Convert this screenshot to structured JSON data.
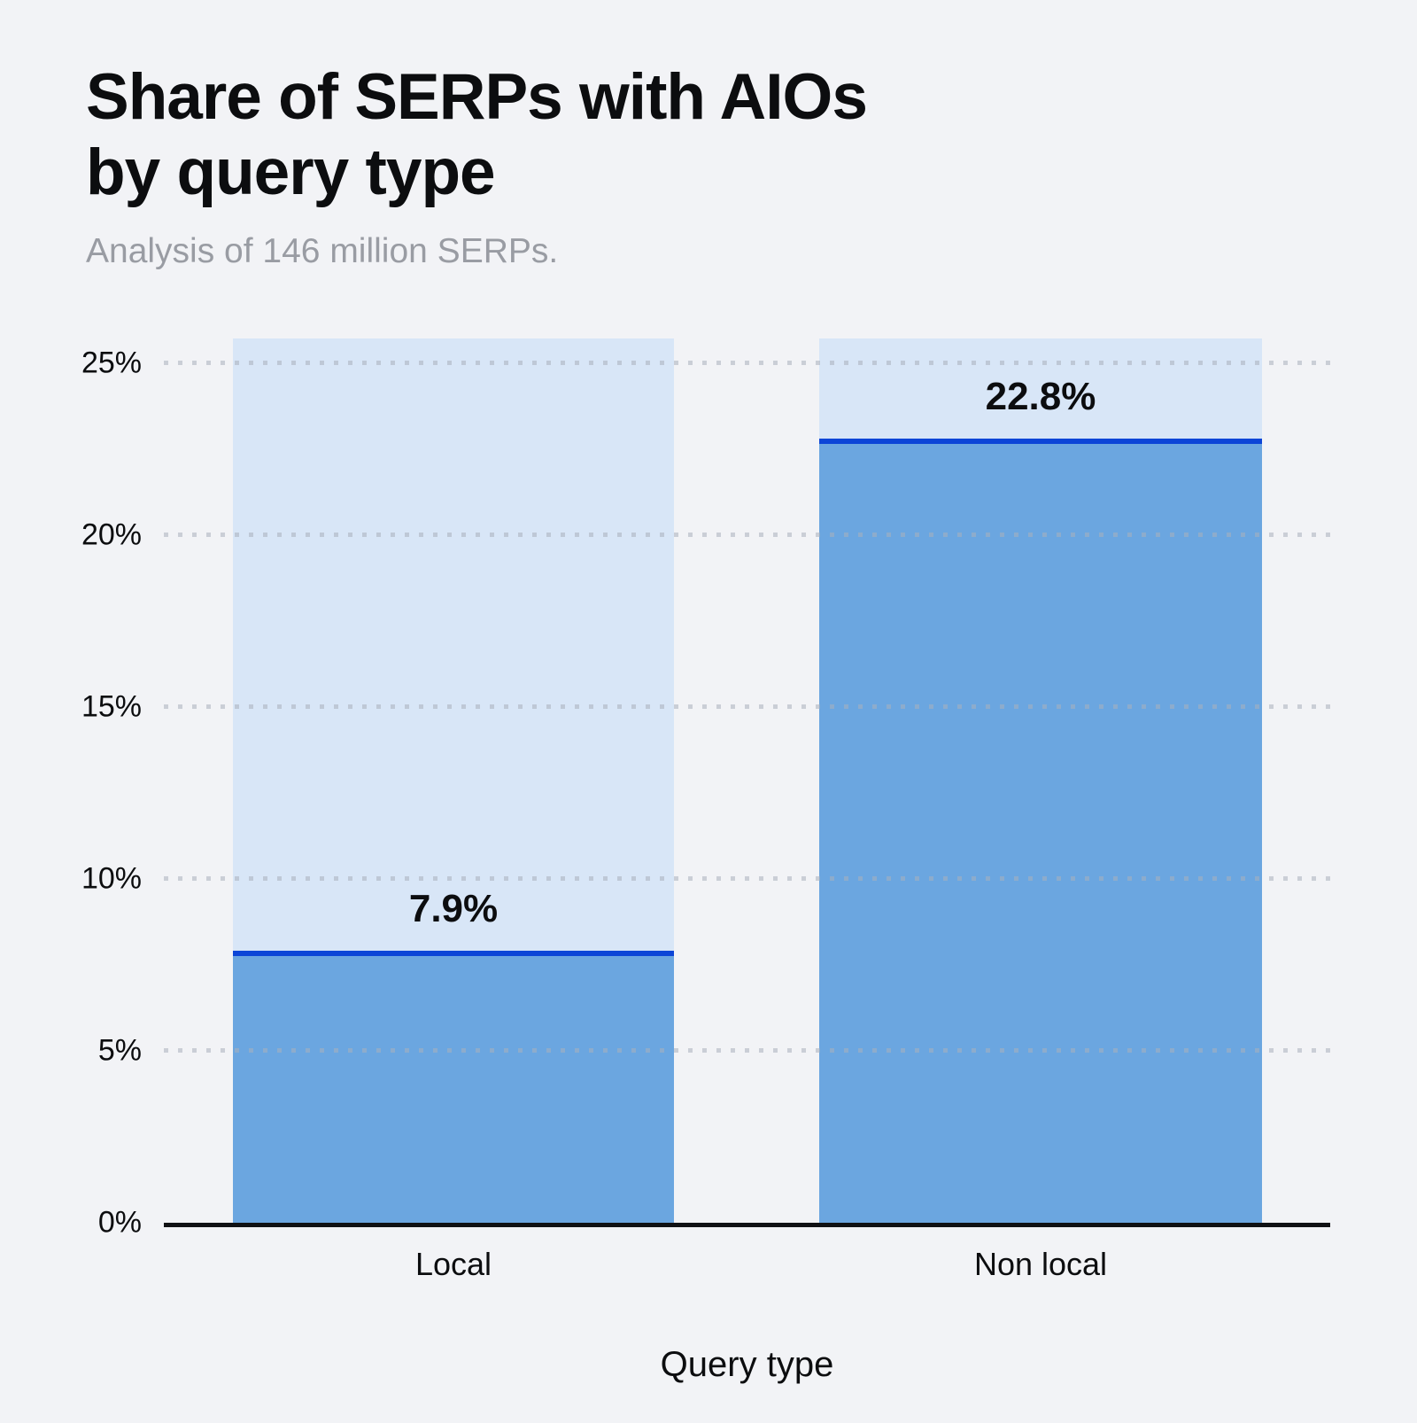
{
  "header": {
    "title_line1": "Share of SERPs with AIOs",
    "title_line2": "by query type",
    "subtitle": "Analysis of 146 million SERPs."
  },
  "chart_data": {
    "type": "bar",
    "title": "Share of SERPs with AIOs by query type",
    "subtitle": "Analysis of 146 million SERPs.",
    "xlabel": "Query type",
    "ylabel": "",
    "categories": [
      "Local",
      "Non local"
    ],
    "values": [
      7.9,
      22.8
    ],
    "value_labels": [
      "7.9%",
      "22.8%"
    ],
    "y_ticks": [
      0,
      5,
      10,
      15,
      20,
      25
    ],
    "y_tick_labels": [
      "0%",
      "5%",
      "10%",
      "15%",
      "20%",
      "25%"
    ],
    "ylim": [
      0,
      25.72
    ],
    "grid": "dotted horizontal gridlines drawn over bars",
    "legend": "none",
    "bar_style": "full-height light background bar with value fill and accent line at value top",
    "colors": {
      "page_background": "#F2F3F6",
      "bar_background": "#D8E6F7",
      "bar_fill": "#6BA6E0",
      "value_line": "#0C45D7",
      "gridline": "#A9B0BC",
      "axis_line": "#101114",
      "text": "#0C0D0F",
      "subtitle_text": "#999CA3"
    }
  }
}
